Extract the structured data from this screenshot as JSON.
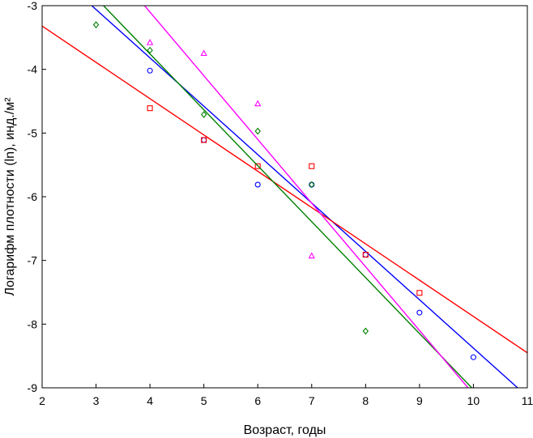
{
  "chart_data": {
    "type": "scatter",
    "xlabel": "Возраст, годы",
    "ylabel": "Логарифм плотности (ln), инд./м²",
    "xlim": [
      2,
      11
    ],
    "ylim": [
      -9,
      -3
    ],
    "xticks": [
      "2",
      "3",
      "4",
      "5",
      "6",
      "7",
      "8",
      "9",
      "10",
      "11"
    ],
    "yticks": [
      "-3",
      "-4",
      "-5",
      "-6",
      "-7",
      "-8",
      "-9"
    ],
    "grid": false,
    "legend": "none",
    "series": [
      {
        "marker": "circle",
        "color": "#0000ff",
        "points": [
          [
            4,
            -4.02
          ],
          [
            5,
            -5.11
          ],
          [
            6,
            -5.81
          ],
          [
            7,
            -5.81
          ],
          [
            8,
            -6.91
          ],
          [
            9,
            -7.82
          ],
          [
            10,
            -8.52
          ]
        ],
        "fit": [
          [
            2,
            -2.3
          ],
          [
            10.82,
            -9.0
          ]
        ]
      },
      {
        "marker": "square",
        "color": "#ff0000",
        "points": [
          [
            4,
            -4.61
          ],
          [
            5,
            -5.11
          ],
          [
            6,
            -5.52
          ],
          [
            7,
            -5.52
          ],
          [
            8,
            -6.91
          ],
          [
            9,
            -7.51
          ]
        ],
        "fit": [
          [
            2,
            -3.32
          ],
          [
            11,
            -8.45
          ]
        ]
      },
      {
        "marker": "diamond",
        "color": "#008000",
        "points": [
          [
            3,
            -3.3
          ],
          [
            4,
            -3.7
          ],
          [
            5,
            -4.71
          ],
          [
            6,
            -4.97
          ],
          [
            7,
            -5.81
          ],
          [
            8,
            -8.11
          ]
        ],
        "fit": [
          [
            2,
            -2.0
          ],
          [
            9.97,
            -9.0
          ]
        ]
      },
      {
        "marker": "triangle",
        "color": "#ff00ff",
        "points": [
          [
            4,
            -3.58
          ],
          [
            5,
            -3.75
          ],
          [
            6,
            -4.54
          ],
          [
            7,
            -6.93
          ]
        ],
        "fit": [
          [
            2,
            -1.1
          ],
          [
            9.9,
            -9.0
          ]
        ]
      }
    ]
  }
}
